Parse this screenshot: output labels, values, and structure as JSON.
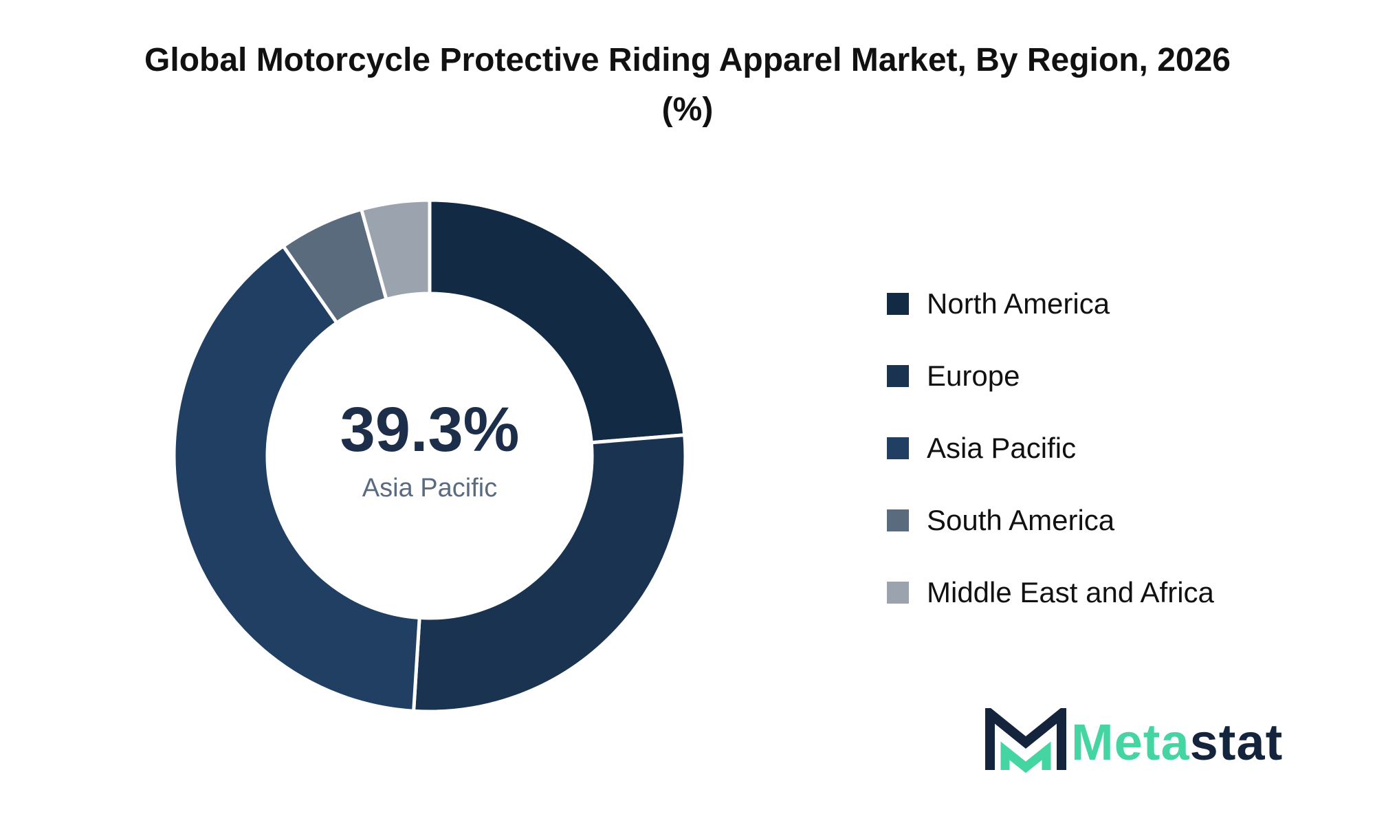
{
  "title": "Global Motorcycle Protective Riding Apparel Market, By Region, 2026 (%)",
  "center": {
    "value": "39.3%",
    "label": "Asia Pacific"
  },
  "chart_data": {
    "type": "pie",
    "title": "Global Motorcycle Protective Riding Apparel Market, By Region, 2026 (%)",
    "categories": [
      "North America",
      "Europe",
      "Asia Pacific",
      "South America",
      "Middle East and Africa"
    ],
    "values": [
      23.7,
      27.3,
      39.3,
      5.4,
      4.3
    ],
    "colors": [
      "#132a45",
      "#1a3350",
      "#203f63",
      "#5a6b7d",
      "#9aa3ae"
    ],
    "legend_position": "right"
  },
  "logo": {
    "name_part1": "Meta",
    "name_part2": "stat",
    "accent": "#45d5a3",
    "dark": "#14243d"
  }
}
